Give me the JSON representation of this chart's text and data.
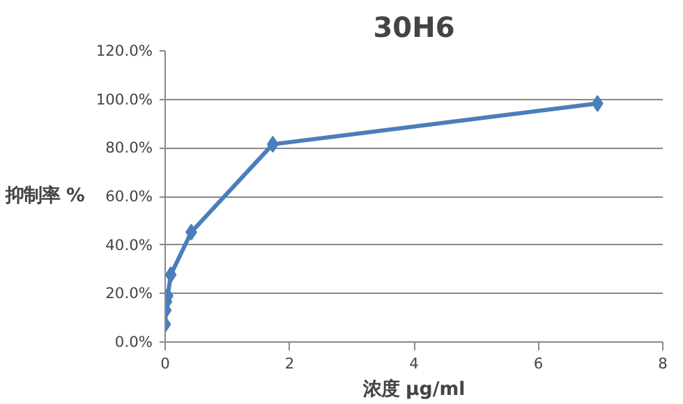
{
  "chart_data": {
    "type": "line",
    "title": "30H6",
    "xlabel": "浓度 μg/ml",
    "ylabel": "抑制率 %",
    "x": [
      0.0,
      0.01,
      0.02,
      0.04,
      0.09,
      0.42,
      1.73,
      6.95
    ],
    "series": [
      {
        "color": "#4a7ebb",
        "values": [
          7.3,
          13.1,
          16.6,
          19.0,
          27.7,
          45.3,
          81.5,
          98.3
        ]
      }
    ],
    "xlim": [
      0,
      8
    ],
    "xticks": [
      0,
      2,
      4,
      6,
      8
    ],
    "ylim": [
      0,
      120
    ],
    "yticks": [
      {
        "value": 0,
        "label": "0.0%"
      },
      {
        "value": 20,
        "label": "20.0%"
      },
      {
        "value": 40,
        "label": "40.0%"
      },
      {
        "value": 60,
        "label": "60.0%"
      },
      {
        "value": 80,
        "label": "80.0%"
      },
      {
        "value": 100,
        "label": "100.0%"
      },
      {
        "value": 120,
        "label": "120.0%"
      }
    ],
    "grid": "y",
    "marker": "diamond",
    "line_style": "solid"
  }
}
